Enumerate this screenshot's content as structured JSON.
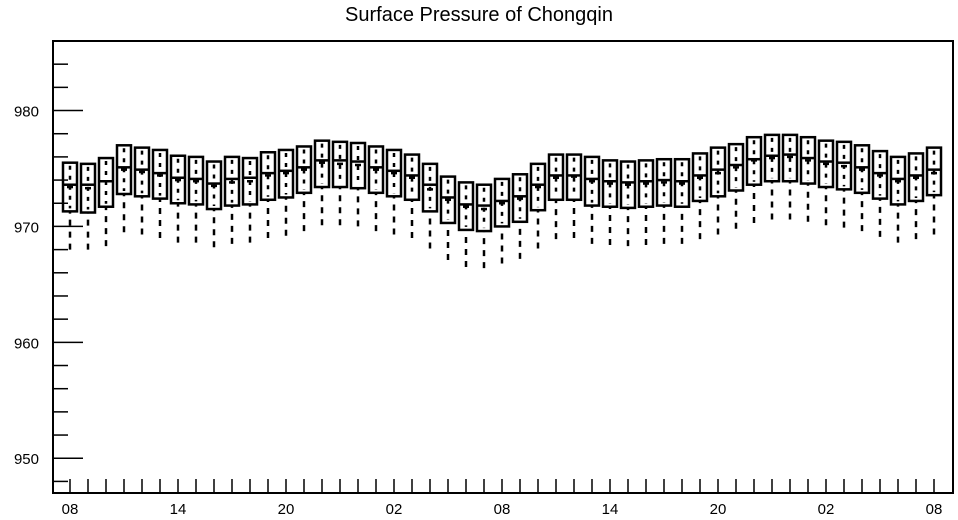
{
  "chart_data": {
    "type": "box",
    "title": "Surface Pressure of Chongqin",
    "xlabel": "",
    "ylabel": "",
    "ylim": [
      947,
      986
    ],
    "yticks": [
      950,
      960,
      970,
      980
    ],
    "x_tick_labels": [
      "08",
      "14",
      "20",
      "02",
      "08",
      "14",
      "20",
      "02",
      "08"
    ],
    "x_tick_hours": [
      0,
      6,
      12,
      18,
      24,
      30,
      36,
      42,
      48
    ],
    "grid": false,
    "legend": "none",
    "boxes": [
      {
        "hour": 0,
        "whisker_low": 968.0,
        "q1": 971.3,
        "median": 973.6,
        "q3": 975.5,
        "whisker_high": 975.5,
        "mean": 973.4
      },
      {
        "hour": 1,
        "whisker_low": 968.0,
        "q1": 971.2,
        "median": 973.6,
        "q3": 975.4,
        "whisker_high": 975.4,
        "mean": 973.3
      },
      {
        "hour": 2,
        "whisker_low": 968.3,
        "q1": 971.7,
        "median": 973.9,
        "q3": 975.9,
        "whisker_high": 975.9,
        "mean": 973.9
      },
      {
        "hour": 3,
        "whisker_low": 969.5,
        "q1": 972.8,
        "median": 975.1,
        "q3": 977.0,
        "whisker_high": 977.0,
        "mean": 974.9
      },
      {
        "hour": 4,
        "whisker_low": 969.3,
        "q1": 972.6,
        "median": 974.9,
        "q3": 976.8,
        "whisker_high": 976.8,
        "mean": 974.7
      },
      {
        "hour": 5,
        "whisker_low": 969.0,
        "q1": 972.4,
        "median": 974.6,
        "q3": 976.6,
        "whisker_high": 976.6,
        "mean": 974.4
      },
      {
        "hour": 6,
        "whisker_low": 968.6,
        "q1": 972.0,
        "median": 974.2,
        "q3": 976.1,
        "whisker_high": 976.1,
        "mean": 974.0
      },
      {
        "hour": 7,
        "whisker_low": 968.6,
        "q1": 971.9,
        "median": 974.1,
        "q3": 976.0,
        "whisker_high": 976.0,
        "mean": 973.9
      },
      {
        "hour": 8,
        "whisker_low": 968.2,
        "q1": 971.5,
        "median": 973.7,
        "q3": 975.6,
        "whisker_high": 975.6,
        "mean": 973.5
      },
      {
        "hour": 9,
        "whisker_low": 968.5,
        "q1": 971.8,
        "median": 974.1,
        "q3": 976.0,
        "whisker_high": 976.0,
        "mean": 973.8
      },
      {
        "hour": 10,
        "whisker_low": 968.6,
        "q1": 971.9,
        "median": 974.2,
        "q3": 975.9,
        "whisker_high": 975.9,
        "mean": 973.9
      },
      {
        "hour": 11,
        "whisker_low": 969.0,
        "q1": 972.3,
        "median": 974.6,
        "q3": 976.4,
        "whisker_high": 976.4,
        "mean": 974.4
      },
      {
        "hour": 12,
        "whisker_low": 969.2,
        "q1": 972.5,
        "median": 974.8,
        "q3": 976.6,
        "whisker_high": 976.6,
        "mean": 974.6
      },
      {
        "hour": 13,
        "whisker_low": 969.6,
        "q1": 972.9,
        "median": 975.1,
        "q3": 976.9,
        "whisker_high": 976.9,
        "mean": 974.9
      },
      {
        "hour": 14,
        "whisker_low": 970.1,
        "q1": 973.4,
        "median": 975.7,
        "q3": 977.4,
        "whisker_high": 977.4,
        "mean": 975.5
      },
      {
        "hour": 15,
        "whisker_low": 970.1,
        "q1": 973.4,
        "median": 975.7,
        "q3": 977.3,
        "whisker_high": 977.3,
        "mean": 975.4
      },
      {
        "hour": 16,
        "whisker_low": 970.0,
        "q1": 973.3,
        "median": 975.6,
        "q3": 977.2,
        "whisker_high": 977.2,
        "mean": 975.3
      },
      {
        "hour": 17,
        "whisker_low": 969.6,
        "q1": 972.9,
        "median": 975.1,
        "q3": 976.9,
        "whisker_high": 976.9,
        "mean": 974.9
      },
      {
        "hour": 18,
        "whisker_low": 969.3,
        "q1": 972.6,
        "median": 974.8,
        "q3": 976.6,
        "whisker_high": 976.6,
        "mean": 974.6
      },
      {
        "hour": 19,
        "whisker_low": 969.0,
        "q1": 972.3,
        "median": 974.4,
        "q3": 976.2,
        "whisker_high": 976.2,
        "mean": 974.2
      },
      {
        "hour": 20,
        "whisker_low": 968.1,
        "q1": 971.3,
        "median": 973.6,
        "q3": 975.4,
        "whisker_high": 975.4,
        "mean": 973.2
      },
      {
        "hour": 21,
        "whisker_low": 967.1,
        "q1": 970.3,
        "median": 972.5,
        "q3": 974.3,
        "whisker_high": 974.3,
        "mean": 972.3
      },
      {
        "hour": 22,
        "whisker_low": 966.5,
        "q1": 969.7,
        "median": 971.9,
        "q3": 973.8,
        "whisker_high": 973.8,
        "mean": 971.7
      },
      {
        "hour": 23,
        "whisker_low": 966.4,
        "q1": 969.6,
        "median": 971.8,
        "q3": 973.6,
        "whisker_high": 973.6,
        "mean": 971.5
      },
      {
        "hour": 24,
        "whisker_low": 966.8,
        "q1": 970.0,
        "median": 972.2,
        "q3": 974.1,
        "whisker_high": 974.1,
        "mean": 972.0
      },
      {
        "hour": 25,
        "whisker_low": 967.2,
        "q1": 970.4,
        "median": 972.6,
        "q3": 974.5,
        "whisker_high": 974.5,
        "mean": 972.4
      },
      {
        "hour": 26,
        "whisker_low": 968.1,
        "q1": 971.4,
        "median": 973.6,
        "q3": 975.4,
        "whisker_high": 975.4,
        "mean": 973.4
      },
      {
        "hour": 27,
        "whisker_low": 968.9,
        "q1": 972.3,
        "median": 974.4,
        "q3": 976.2,
        "whisker_high": 976.2,
        "mean": 974.2
      },
      {
        "hour": 28,
        "whisker_low": 969.0,
        "q1": 972.3,
        "median": 974.4,
        "q3": 976.2,
        "whisker_high": 976.2,
        "mean": 974.3
      },
      {
        "hour": 29,
        "whisker_low": 968.5,
        "q1": 971.8,
        "median": 974.1,
        "q3": 976.0,
        "whisker_high": 976.0,
        "mean": 973.9
      },
      {
        "hour": 30,
        "whisker_low": 968.4,
        "q1": 971.7,
        "median": 973.9,
        "q3": 975.7,
        "whisker_high": 975.7,
        "mean": 973.7
      },
      {
        "hour": 31,
        "whisker_low": 968.3,
        "q1": 971.6,
        "median": 973.8,
        "q3": 975.6,
        "whisker_high": 975.6,
        "mean": 973.6
      },
      {
        "hour": 32,
        "whisker_low": 968.4,
        "q1": 971.7,
        "median": 973.9,
        "q3": 975.7,
        "whisker_high": 975.7,
        "mean": 973.7
      },
      {
        "hour": 33,
        "whisker_low": 968.5,
        "q1": 971.8,
        "median": 974.0,
        "q3": 975.8,
        "whisker_high": 975.8,
        "mean": 973.8
      },
      {
        "hour": 34,
        "whisker_low": 968.5,
        "q1": 971.7,
        "median": 973.9,
        "q3": 975.8,
        "whisker_high": 975.8,
        "mean": 973.7
      },
      {
        "hour": 35,
        "whisker_low": 968.9,
        "q1": 972.2,
        "median": 974.4,
        "q3": 976.3,
        "whisker_high": 976.3,
        "mean": 974.2
      },
      {
        "hour": 36,
        "whisker_low": 969.3,
        "q1": 972.6,
        "median": 974.9,
        "q3": 976.8,
        "whisker_high": 976.8,
        "mean": 974.6
      },
      {
        "hour": 37,
        "whisker_low": 969.8,
        "q1": 973.1,
        "median": 975.3,
        "q3": 977.1,
        "whisker_high": 977.1,
        "mean": 975.1
      },
      {
        "hour": 38,
        "whisker_low": 970.3,
        "q1": 973.6,
        "median": 975.8,
        "q3": 977.7,
        "whisker_high": 977.7,
        "mean": 975.7
      },
      {
        "hour": 39,
        "whisker_low": 970.6,
        "q1": 973.9,
        "median": 976.1,
        "q3": 977.9,
        "whisker_high": 977.9,
        "mean": 975.9
      },
      {
        "hour": 40,
        "whisker_low": 970.6,
        "q1": 973.9,
        "median": 976.2,
        "q3": 977.9,
        "whisker_high": 977.9,
        "mean": 976.0
      },
      {
        "hour": 41,
        "whisker_low": 970.4,
        "q1": 973.7,
        "median": 975.9,
        "q3": 977.7,
        "whisker_high": 977.7,
        "mean": 975.7
      },
      {
        "hour": 42,
        "whisker_low": 970.1,
        "q1": 973.4,
        "median": 975.6,
        "q3": 977.4,
        "whisker_high": 977.4,
        "mean": 975.4
      },
      {
        "hour": 43,
        "whisker_low": 969.9,
        "q1": 973.2,
        "median": 975.5,
        "q3": 977.3,
        "whisker_high": 977.3,
        "mean": 975.2
      },
      {
        "hour": 44,
        "whisker_low": 969.6,
        "q1": 972.9,
        "median": 975.1,
        "q3": 977.0,
        "whisker_high": 977.0,
        "mean": 974.9
      },
      {
        "hour": 45,
        "whisker_low": 969.1,
        "q1": 972.4,
        "median": 974.6,
        "q3": 976.5,
        "whisker_high": 976.5,
        "mean": 974.4
      },
      {
        "hour": 46,
        "whisker_low": 968.6,
        "q1": 971.9,
        "median": 974.1,
        "q3": 976.0,
        "whisker_high": 976.0,
        "mean": 973.9
      },
      {
        "hour": 47,
        "whisker_low": 968.9,
        "q1": 972.2,
        "median": 974.4,
        "q3": 976.3,
        "whisker_high": 976.3,
        "mean": 974.2
      },
      {
        "hour": 48,
        "whisker_low": 969.3,
        "q1": 972.7,
        "median": 974.9,
        "q3": 976.8,
        "whisker_high": 976.8,
        "mean": 974.6
      }
    ]
  }
}
